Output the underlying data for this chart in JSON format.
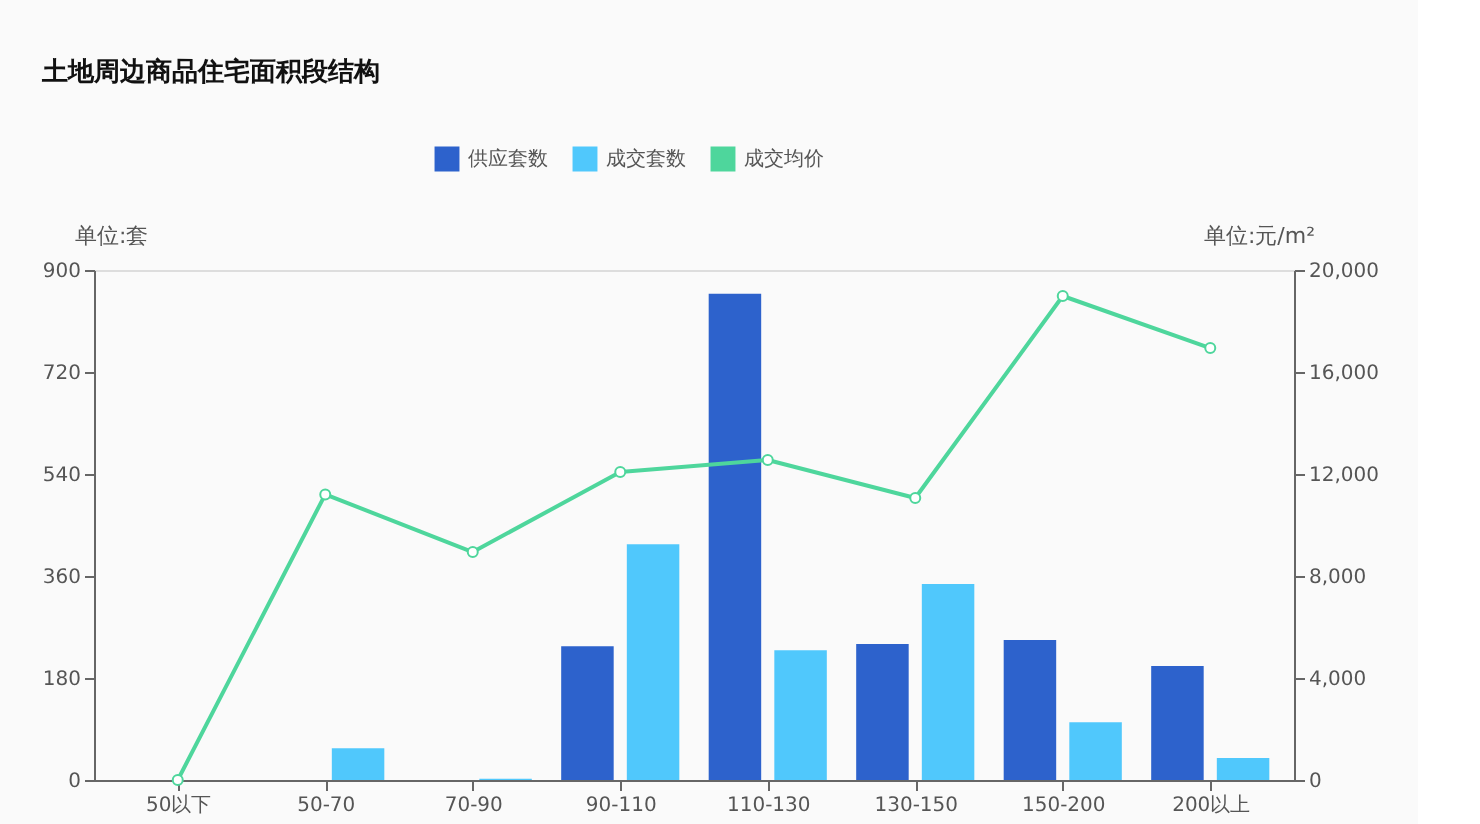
{
  "chart_data": {
    "type": "bar",
    "title": "土地周边商品住宅面积段结构",
    "categories": [
      "50以下",
      "50-70",
      "70-90",
      "90-110",
      "110-130",
      "130-150",
      "150-200",
      "200以上"
    ],
    "series": [
      {
        "name": "供应套数",
        "color": "#2d62cc",
        "values": [
          0,
          0,
          0,
          236,
          858,
          240,
          247,
          201
        ]
      },
      {
        "name": "成交套数",
        "color": "#50c8fc",
        "values": [
          0,
          56,
          2,
          416,
          229,
          346,
          102,
          39
        ]
      },
      {
        "name": "成交均价",
        "color": "#4ed69c",
        "type": "line",
        "axis": "y2",
        "values": [
          0,
          11200,
          8940,
          12080,
          12550,
          11060,
          18980,
          16940
        ]
      }
    ],
    "ylabel": "单位:套",
    "y2label": "单位:元/m²",
    "ylim": [
      0,
      900
    ],
    "yticks": [
      0,
      180,
      360,
      540,
      720,
      900
    ],
    "y2lim": [
      0,
      20000
    ],
    "y2ticks": [
      0,
      {
        "value": 4000,
        "label": "4,000"
      },
      {
        "value": 8000,
        "label": "8,000"
      },
      {
        "value": 12000,
        "label": "12,000"
      },
      {
        "value": 16000,
        "label": "16,000"
      },
      {
        "value": 20000,
        "label": "20,000"
      }
    ],
    "legend": "top",
    "marker": "circle",
    "grid": false
  }
}
